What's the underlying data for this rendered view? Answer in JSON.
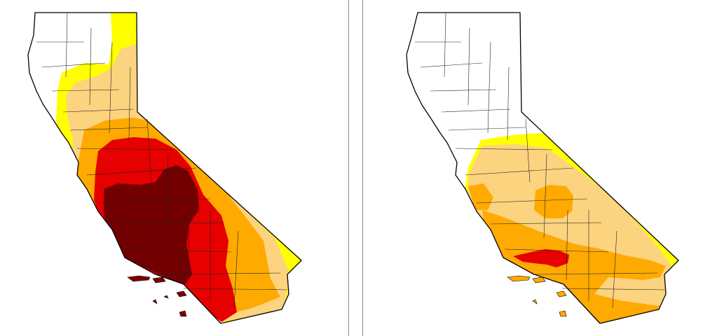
{
  "maps": [
    {
      "id": "left",
      "categories": {
        "none": "#ffffff",
        "d0": "#ffff00",
        "d1": "#fcd37f",
        "d2": "#ffaa00",
        "d3": "#e60000",
        "d4": "#730000"
      }
    },
    {
      "id": "right",
      "categories": {
        "none": "#ffffff",
        "d0": "#ffff00",
        "d1": "#fcd37f",
        "d2": "#ffaa00",
        "d3": "#e60000"
      }
    }
  ]
}
